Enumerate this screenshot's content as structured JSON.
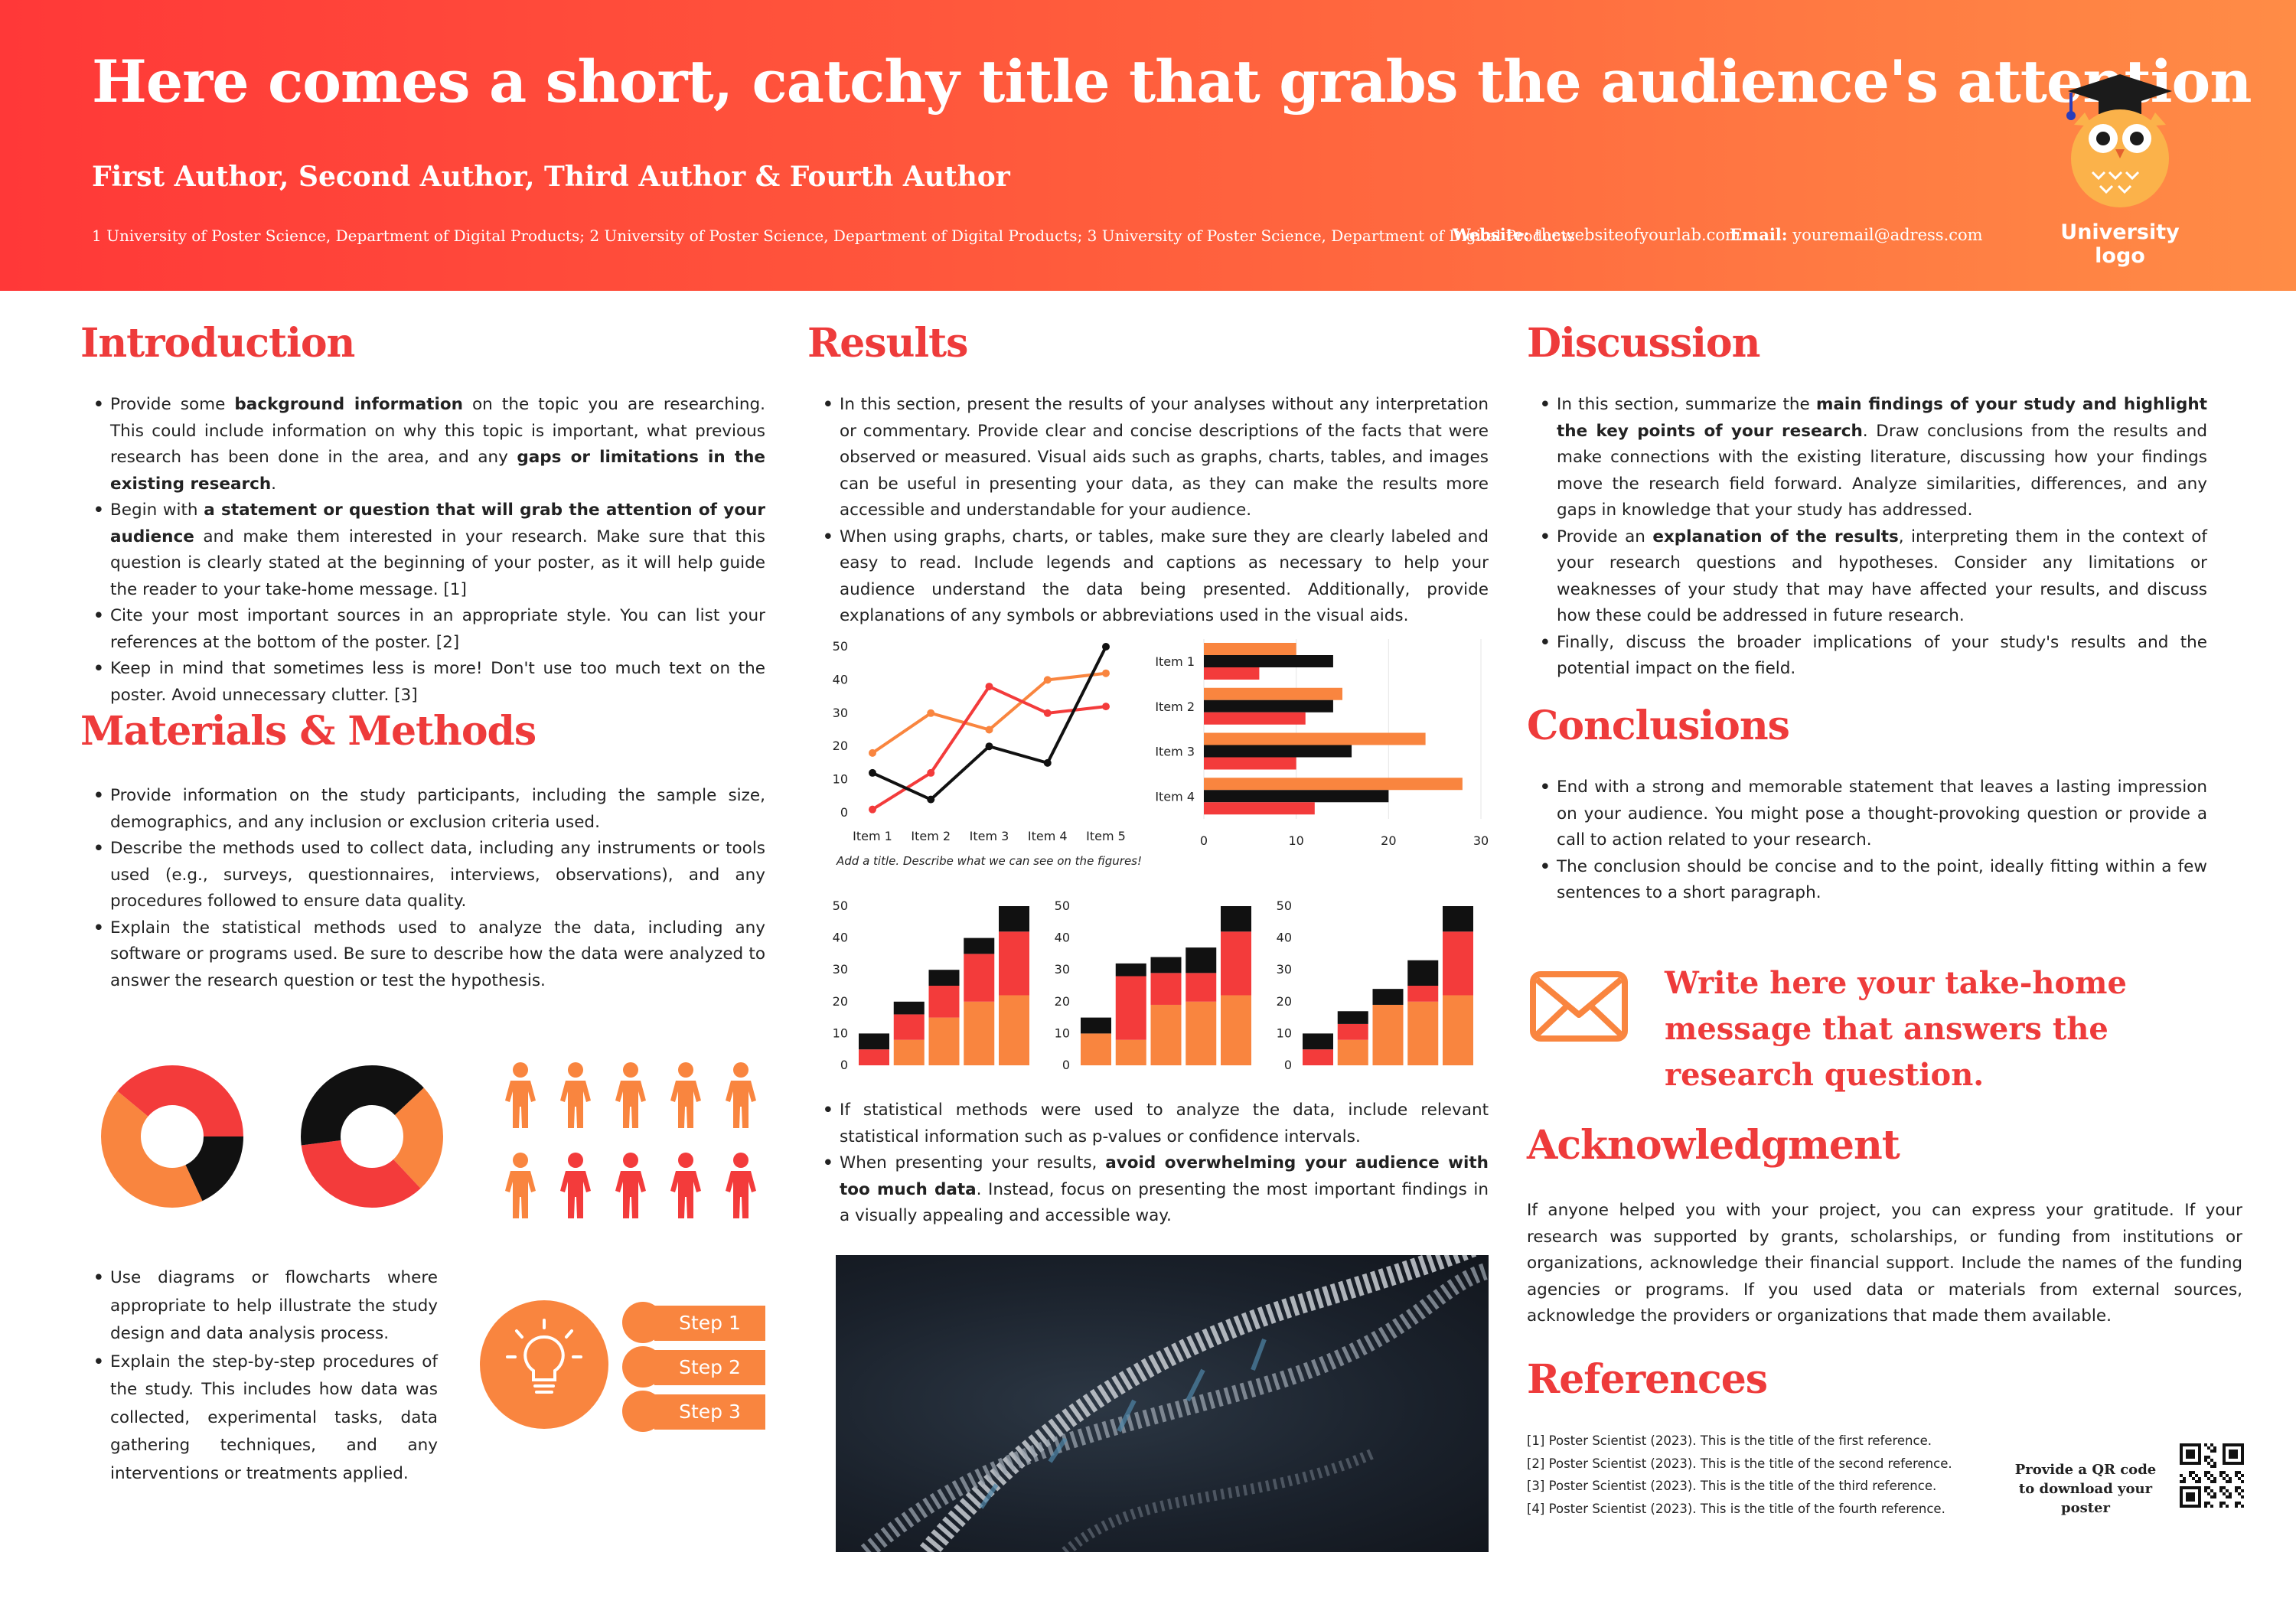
{
  "header": {
    "title": "Here comes a short, catchy title that grabs the audience's attention",
    "authors": "First Author, Second Author, Third Author & Fourth Author",
    "affiliations": "1 University of Poster Science, Department of Digital Products; 2 University of Poster Science, Department of Digital Products; 3 University of Poster Science, Department of Digital Products",
    "website_label": "Website:",
    "website_value": "thewebsiteofyourlab.com",
    "email_label": "Email:",
    "email_value": "youremail@adress.com",
    "logo_text": "University logo"
  },
  "colors": {
    "red": "#f33b3b",
    "orange": "#f9853f",
    "black": "#111111",
    "title_red": "#ee3b3b"
  },
  "introduction": {
    "heading": "Introduction",
    "bullets": [
      [
        {
          "t": "Provide some "
        },
        {
          "t": "background information",
          "b": true
        },
        {
          "t": " on the topic you are researching. This could include information on why this topic is important, what previous research has been done in the area, and any "
        },
        {
          "t": "gaps or limitations in the existing research",
          "b": true
        },
        {
          "t": "."
        }
      ],
      [
        {
          "t": "Begin with "
        },
        {
          "t": "a statement or question that will grab the attention of your audience",
          "b": true
        },
        {
          "t": " and make them interested in your research. Make sure that this question is clearly stated at the beginning of your poster, as it will help guide the reader to your take-home message. [1]"
        }
      ],
      [
        {
          "t": "Cite your most important sources in an appropriate style. You can list your references at the bottom of the poster. [2]"
        }
      ],
      [
        {
          "t": "Keep in mind that sometimes less is more! Don't use too much text on the poster. Avoid unnecessary clutter. [3]"
        }
      ]
    ]
  },
  "methods": {
    "heading": "Materials & Methods",
    "bullets": [
      [
        {
          "t": "Provide information on the study participants, including the sample size, demographics, and any inclusion or exclusion criteria used."
        }
      ],
      [
        {
          "t": "Describe the methods used to collect data, including any instruments or tools used (e.g., surveys, questionnaires, interviews, observations), and any procedures followed to ensure data quality."
        }
      ],
      [
        {
          "t": "Explain the statistical methods used to analyze the data, including any software or programs used. Be sure to describe how the data were analyzed to answer the research question or test the hypothesis."
        }
      ]
    ],
    "bullets2": [
      [
        {
          "t": "Use diagrams or flowcharts where appropriate to help illustrate the study design and data analysis process."
        }
      ],
      [
        {
          "t": "Explain the step-by-step procedures of the study. This includes how data was collected, experimental tasks, data gathering techniques, and any interventions or treatments applied."
        }
      ]
    ],
    "steps": [
      "Step 1",
      "Step 2",
      "Step 3"
    ],
    "donut1": [
      {
        "value": 0.25,
        "color": "#f33b3b"
      },
      {
        "value": 0.18,
        "color": "#111111"
      },
      {
        "value": 0.43,
        "color": "#f9853f"
      },
      {
        "value": 0.14,
        "color": "#f33b3b"
      }
    ],
    "donut2": [
      {
        "value": 0.13,
        "color": "#111111"
      },
      {
        "value": 0.25,
        "color": "#f9853f"
      },
      {
        "value": 0.35,
        "color": "#f33b3b"
      },
      {
        "value": 0.27,
        "color": "#111111"
      }
    ],
    "people": [
      "orange",
      "orange",
      "orange",
      "orange",
      "orange",
      "orange",
      "red",
      "red",
      "red",
      "red"
    ]
  },
  "results": {
    "heading": "Results",
    "bullets": [
      [
        {
          "t": "In this section, present the results of your analyses without any interpretation or commentary. Provide clear and concise descriptions of the facts that were observed or measured. Visual aids such as graphs, charts, tables, and images can be useful in presenting your data, as they can make the results more accessible and understandable for your audience."
        }
      ],
      [
        {
          "t": "When using graphs, charts, or tables, make sure they are clearly labeled and easy to read. Include legends and captions as necessary to help your audience understand the data being presented. Additionally, provide explanations of any symbols or abbreviations used in the visual aids."
        }
      ]
    ],
    "bullets2": [
      [
        {
          "t": "If statistical methods were used to analyze the data, include relevant statistical information such as p-values or confidence intervals."
        }
      ],
      [
        {
          "t": "When presenting your results, "
        },
        {
          "t": "avoid overwhelming your audience with too much data",
          "b": true
        },
        {
          "t": ". Instead, focus on presenting the most important findings in a visually appealing and accessible way."
        }
      ]
    ],
    "caption": "Add a title. Describe what we can see on the figures!"
  },
  "chart_data": [
    {
      "type": "line",
      "categories": [
        "Item 1",
        "Item 2",
        "Item 3",
        "Item 4",
        "Item 5"
      ],
      "ylim": [
        0,
        50
      ],
      "yticks": [
        0,
        10,
        20,
        30,
        40,
        50
      ],
      "series": [
        {
          "color": "#f9853f",
          "values": [
            18,
            30,
            25,
            40,
            42
          ]
        },
        {
          "color": "#f33b3b",
          "values": [
            1,
            12,
            38,
            30,
            32
          ]
        },
        {
          "color": "#111111",
          "values": [
            12,
            4,
            20,
            15,
            50
          ]
        }
      ]
    },
    {
      "type": "bar",
      "orientation": "horizontal",
      "categories": [
        "Item 1",
        "Item 2",
        "Item 3",
        "Item 4"
      ],
      "xlim": [
        0,
        30
      ],
      "xticks": [
        0,
        10,
        20,
        30
      ],
      "series": [
        {
          "color": "#f9853f",
          "values": [
            10,
            15,
            24,
            28
          ]
        },
        {
          "color": "#111111",
          "values": [
            14,
            14,
            16,
            20
          ]
        },
        {
          "color": "#f33b3b",
          "values": [
            6,
            11,
            10,
            12
          ]
        }
      ]
    },
    {
      "type": "bar",
      "stacked": true,
      "ylim": [
        0,
        50
      ],
      "yticks": [
        0,
        10,
        20,
        30,
        40,
        50
      ],
      "series": [
        {
          "color": "#f9853f",
          "values": [
            0,
            8,
            15,
            20,
            22
          ]
        },
        {
          "color": "#f33b3b",
          "values": [
            5,
            8,
            10,
            15,
            20
          ]
        },
        {
          "color": "#111111",
          "values": [
            5,
            4,
            5,
            5,
            8
          ]
        }
      ]
    },
    {
      "type": "bar",
      "stacked": true,
      "ylim": [
        0,
        50
      ],
      "yticks": [
        0,
        10,
        20,
        30,
        40,
        50
      ],
      "series": [
        {
          "color": "#f9853f",
          "values": [
            10,
            8,
            19,
            20,
            22
          ]
        },
        {
          "color": "#f33b3b",
          "values": [
            0,
            20,
            10,
            9,
            20
          ]
        },
        {
          "color": "#111111",
          "values": [
            5,
            4,
            5,
            8,
            8
          ]
        }
      ]
    },
    {
      "type": "bar",
      "stacked": true,
      "ylim": [
        0,
        50
      ],
      "yticks": [
        0,
        10,
        20,
        30,
        40,
        50
      ],
      "series": [
        {
          "color": "#f9853f",
          "values": [
            0,
            8,
            19,
            20,
            22
          ]
        },
        {
          "color": "#f33b3b",
          "values": [
            5,
            5,
            0,
            5,
            20
          ]
        },
        {
          "color": "#111111",
          "values": [
            5,
            4,
            5,
            8,
            8
          ]
        }
      ]
    }
  ],
  "discussion": {
    "heading": "Discussion",
    "bullets": [
      [
        {
          "t": "In this section, summarize the "
        },
        {
          "t": "main findings of your study and highlight the key points of your research",
          "b": true
        },
        {
          "t": ". Draw conclusions from the results and make connections with the existing literature, discussing how your findings move the research field forward. Analyze similarities, differences, and any gaps in knowledge that your study has addressed."
        }
      ],
      [
        {
          "t": "Provide an "
        },
        {
          "t": "explanation of the results",
          "b": true
        },
        {
          "t": ", interpreting them in the context of your research questions and hypotheses. Consider any limitations or weaknesses of your study that may have affected your results, and discuss how these could be addressed in future research."
        }
      ],
      [
        {
          "t": "Finally, discuss the broader implications of your study's results and the potential impact on the field."
        }
      ]
    ]
  },
  "conclusions": {
    "heading": "Conclusions",
    "bullets": [
      [
        {
          "t": "End with a strong and memorable statement that leaves a lasting impression on your audience. You might pose a thought-provoking question or provide a call to action related to your research."
        }
      ],
      [
        {
          "t": "The conclusion should be concise and to the point, ideally fitting within a few sentences to a short paragraph."
        }
      ]
    ]
  },
  "takehome": "Write here your take-home message that answers the research question.",
  "acknowledgment": {
    "heading": "Acknowledgment",
    "text": "If anyone helped you with your project, you can express your gratitude. If your research was supported by grants, scholarships, or funding from institutions or organizations, acknowledge their financial support. Include the names of the funding agencies or programs. If you used data or materials from external sources, acknowledge the providers or organizations that made them available."
  },
  "references": {
    "heading": "References",
    "items": [
      "[1] Poster Scientist (2023). This is the title of the first reference.",
      "[2] Poster Scientist (2023). This is the title of the second reference.",
      "[3] Poster Scientist (2023). This is the title of the third reference.",
      "[4] Poster Scientist (2023). This is the title of the fourth reference."
    ],
    "qr_text": "Provide a QR code to download your poster"
  }
}
